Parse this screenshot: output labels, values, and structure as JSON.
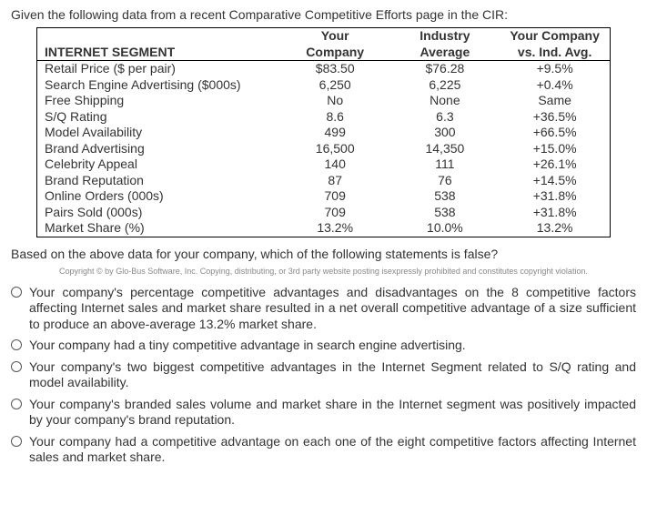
{
  "intro": "Given the following data from a recent Comparative Competitive Efforts page in the CIR:",
  "table": {
    "header_corner": "INTERNET SEGMENT",
    "col1_l1": "Your",
    "col1_l2": "Company",
    "col2_l1": "Industry",
    "col2_l2": "Average",
    "col3_l1": "Your Company",
    "col3_l2": "vs. Ind. Avg.",
    "rows": [
      {
        "label": "Retail Price ($ per pair)",
        "c1": "$83.50",
        "c2": "$76.28",
        "c3": "+9.5%"
      },
      {
        "label": "Search Engine Advertising ($000s)",
        "c1": "6,250",
        "c2": "6,225",
        "c3": "+0.4%"
      },
      {
        "label": "Free Shipping",
        "c1": "No",
        "c2": "None",
        "c3": "Same"
      },
      {
        "label": "S/Q Rating",
        "c1": "8.6",
        "c2": "6.3",
        "c3": "+36.5%"
      },
      {
        "label": "Model Availability",
        "c1": "499",
        "c2": "300",
        "c3": "+66.5%"
      },
      {
        "label": "Brand Advertising",
        "c1": "16,500",
        "c2": "14,350",
        "c3": "+15.0%"
      },
      {
        "label": "Celebrity Appeal",
        "c1": "140",
        "c2": "111",
        "c3": "+26.1%"
      },
      {
        "label": "Brand Reputation",
        "c1": "87",
        "c2": "76",
        "c3": "+14.5%"
      },
      {
        "label": "Online Orders (000s)",
        "c1": "709",
        "c2": "538",
        "c3": "+31.8%"
      },
      {
        "label": "Pairs Sold (000s)",
        "c1": "709",
        "c2": "538",
        "c3": "+31.8%"
      },
      {
        "label": "Market Share (%)",
        "c1": "13.2%",
        "c2": "10.0%",
        "c3": "13.2%"
      }
    ]
  },
  "question": "Based on the above data for your company, which of the following statements is false?",
  "copyright": "Copyright © by Glo-Bus Software, Inc. Copying, distributing, or 3rd party website posting isexpressly prohibited and constitutes copyright violation.",
  "options": [
    "Your company's percentage competitive advantages and disadvantages on the 8 competitive factors affecting Internet sales and market share resulted in a net overall competitive advantage of a size sufficient to produce an above-average 13.2% market share.",
    "Your company had a tiny competitive advantage in search engine advertising.",
    "Your company's two biggest competitive advantages in the Internet Segment related to S/Q rating and model availability.",
    "Your company's branded sales volume and market share in the Internet segment was positively impacted by your company's brand reputation.",
    "Your company had a competitive advantage on each one of the eight competitive factors affecting Internet sales and market share."
  ]
}
